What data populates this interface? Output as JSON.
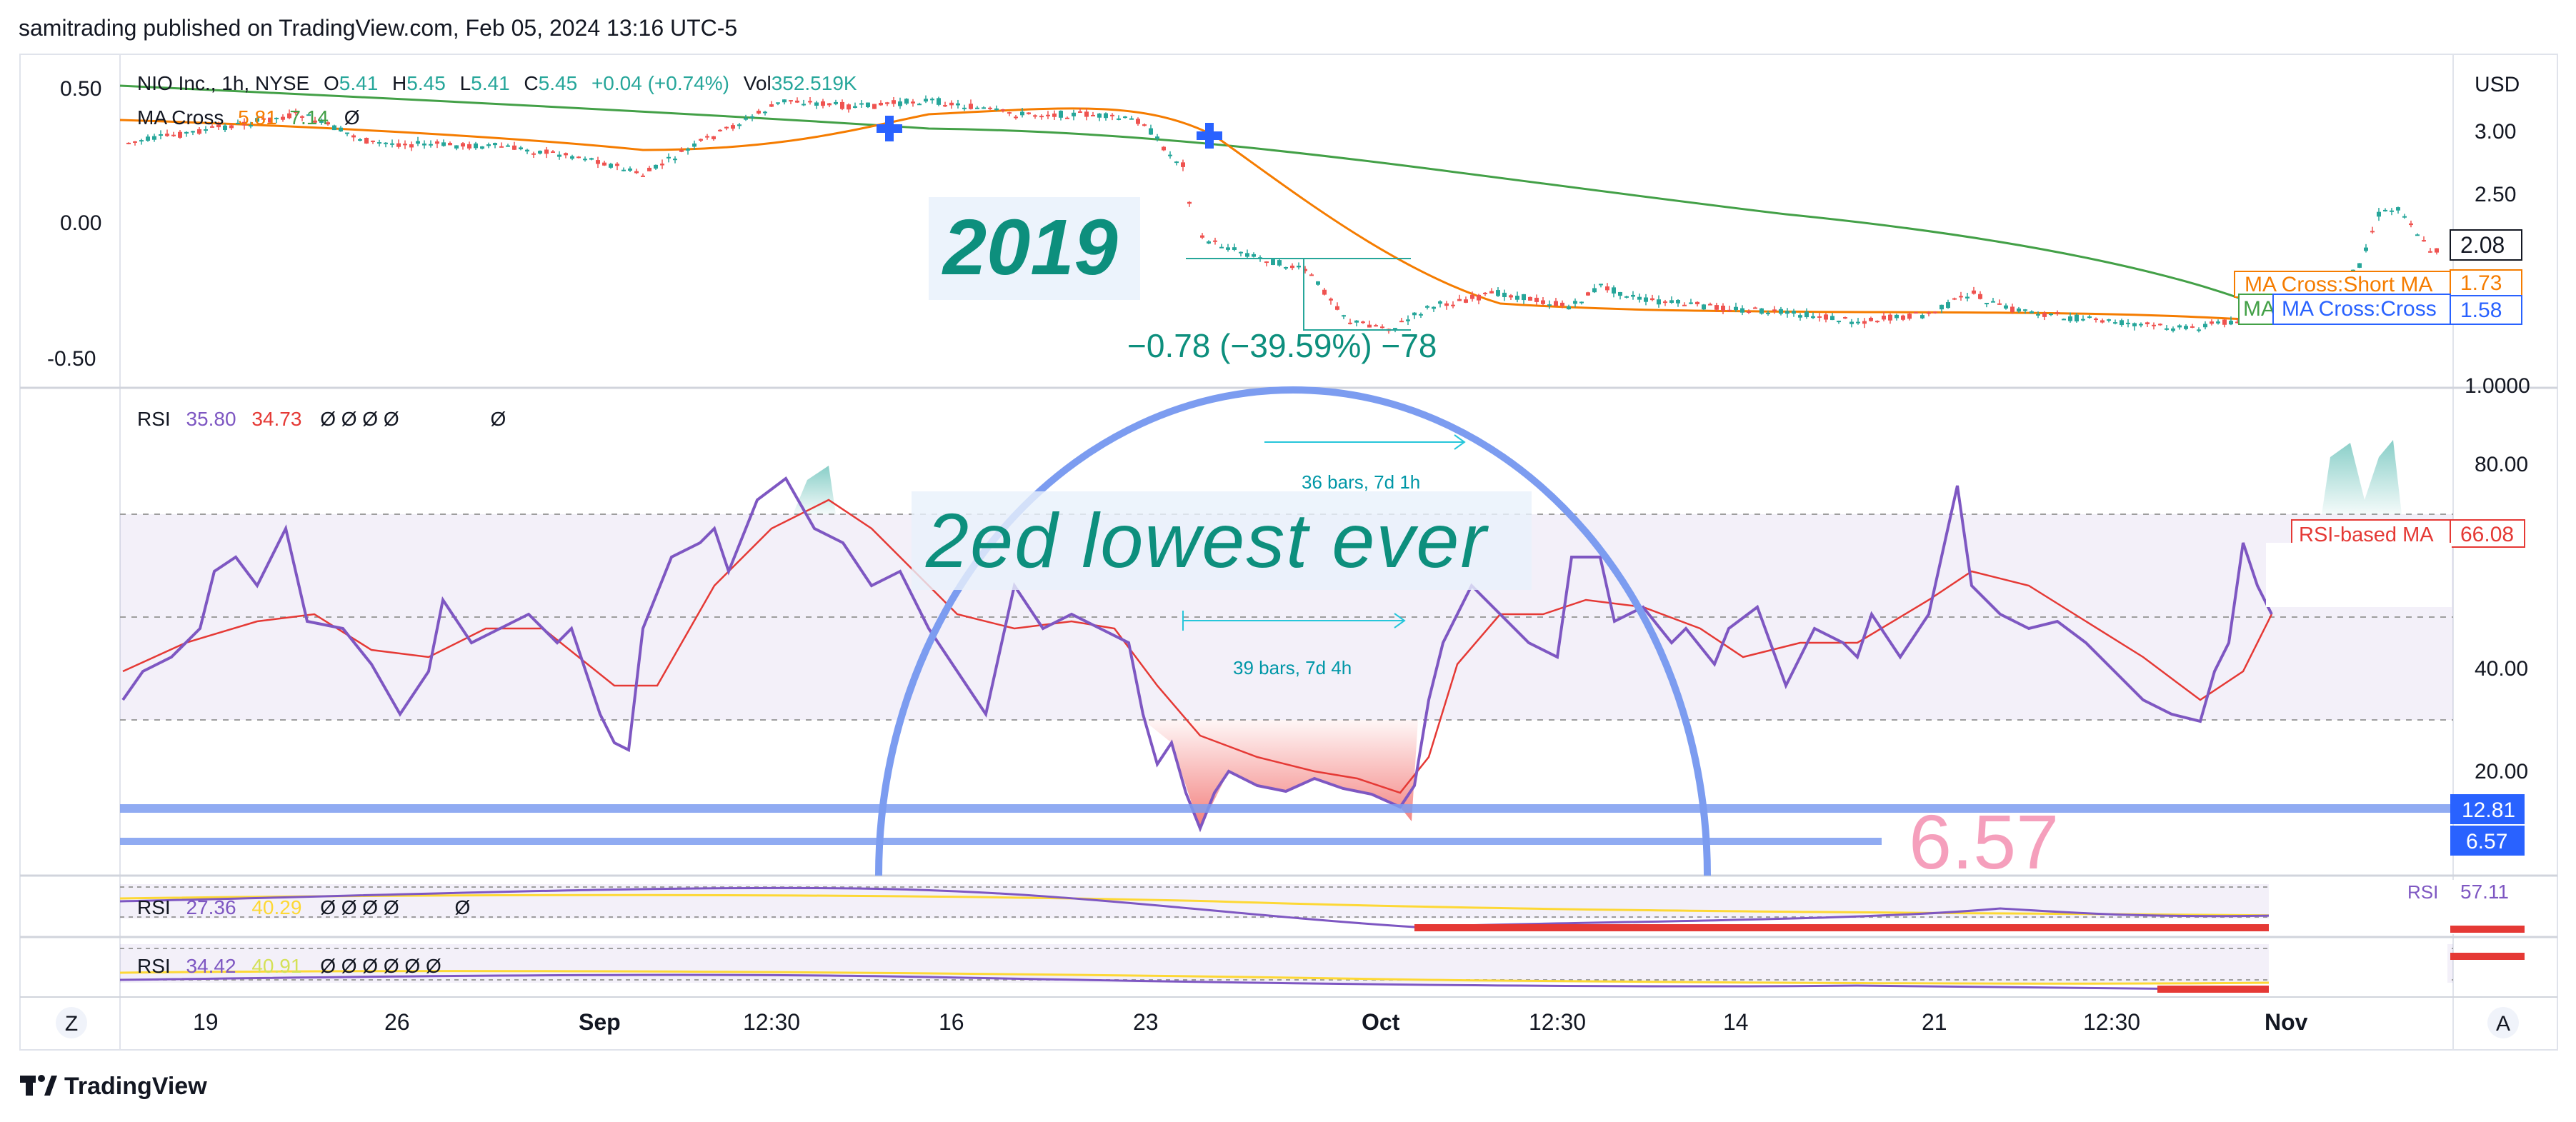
{
  "header": {
    "publisher": "samitrading published on TradingView.com, Feb 05, 2024 13:16 UTC-5"
  },
  "footer": {
    "brand": "TradingView",
    "z_button": "Z",
    "a_button": "A"
  },
  "colors": {
    "up": "#26a69a",
    "down": "#ef5350",
    "rsi": "#7e57c2",
    "rsi_ma": "#e53935",
    "ma_short": "#f57c00",
    "ma_long": "#43a047",
    "annotation": "#0d8f7d",
    "blue_tool": "#2962ff",
    "tool_line": "#7c9cf0"
  },
  "main_pane": {
    "symbol": "NIO Inc., 1h, NYSE",
    "ohlc": {
      "o_label": "O",
      "o": "5.41",
      "h_label": "H",
      "h": "5.45",
      "l_label": "L",
      "l": "5.41",
      "c_label": "C",
      "c": "5.45",
      "change": "+0.04 (+0.74%)",
      "vol_label": "Vol",
      "vol": "352.519K"
    },
    "indicator": {
      "name": "MA Cross",
      "short": "5.81",
      "long": "7.14",
      "extra": "Ø"
    },
    "currency": "USD",
    "right_axis": [
      "3.00",
      "2.50",
      "2.08",
      "1.73",
      "1.58",
      "1.0000"
    ],
    "left_axis": [
      "0.50",
      "0.00",
      "-0.50"
    ],
    "labels": {
      "short_ma": "MA Cross:Short MA",
      "cross": "MA Cross:Cross",
      "mid": "MA"
    },
    "annotation_year": "2019",
    "measure": "−0.78 (−39.59%) −78"
  },
  "rsi_pane": {
    "name": "RSI",
    "value": "35.80",
    "ma": "34.73",
    "placeholders": "Ø  Ø  Ø  Ø",
    "placeholder2": "Ø",
    "axis": [
      "80.00",
      "40.00",
      "20.00"
    ],
    "rsi_ma_label": "RSI-based MA",
    "rsi_ma_value": "66.08",
    "level_top": "12.81",
    "level_bottom": "6.57",
    "big_value": "6.57",
    "annotation": "2ed lowest ever",
    "range1": "36 bars, 7d 1h",
    "range2": "39 bars, 7d 4h"
  },
  "rsi_pane2": {
    "name": "RSI",
    "value": "27.36",
    "ma": "40.29",
    "placeholders": "Ø  Ø  Ø  Ø",
    "placeholder2": "Ø",
    "right_value": "57.11",
    "right_label": "RSI"
  },
  "rsi_pane3": {
    "name": "RSI",
    "value": "34.42",
    "ma": "40.91",
    "placeholders": "Ø  Ø  Ø  Ø  Ø  Ø"
  },
  "time_axis": [
    "19",
    "26",
    "Sep",
    "12:30",
    "16",
    "23",
    "Oct",
    "12:30",
    "14",
    "21",
    "12:30",
    "Nov"
  ]
}
